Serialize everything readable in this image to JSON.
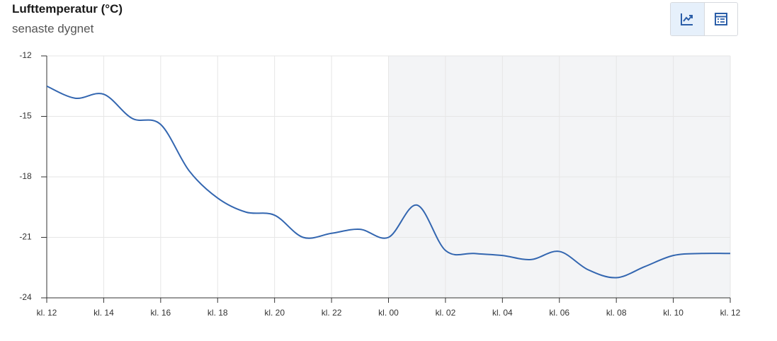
{
  "chart_data": {
    "type": "line",
    "title": "Lufttemperatur (°C)",
    "subtitle": "senaste dygnet",
    "categories": [
      "kl. 12",
      null,
      "kl. 14",
      null,
      "kl. 16",
      null,
      "kl. 18",
      null,
      "kl. 20",
      null,
      "kl. 22",
      null,
      "kl. 00",
      null,
      "kl. 02",
      null,
      "kl. 04",
      null,
      "kl. 06",
      null,
      "kl. 08",
      null,
      "kl. 10",
      null,
      "kl. 12"
    ],
    "values": [
      -13.5,
      -14.1,
      -13.9,
      -15.1,
      -15.4,
      -17.7,
      -19.05,
      -19.75,
      -19.9,
      -21.0,
      -20.8,
      -20.6,
      -21.0,
      -19.4,
      -21.65,
      -21.8,
      -21.9,
      -22.1,
      -21.7,
      -22.6,
      -23.0,
      -22.45,
      -21.9,
      -21.8,
      -21.8
    ],
    "color": "#3366b0",
    "ylim": [
      -24,
      -12
    ],
    "yticks": [
      -24,
      -21,
      -18,
      -15,
      -12
    ],
    "grid": true,
    "shaded_range": [
      12,
      24
    ]
  }
}
